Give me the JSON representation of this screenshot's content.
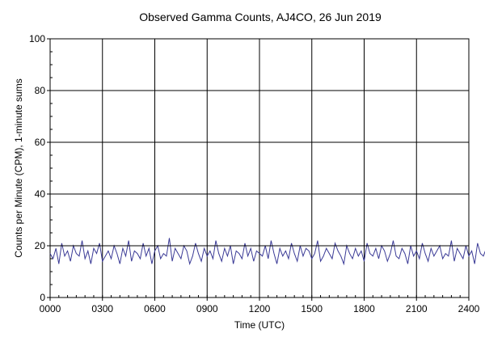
{
  "chart_data": {
    "type": "line",
    "title": "Observed Gamma Counts, AJ4CO, 26 Jun 2019",
    "xlabel": "Time (UTC)",
    "ylabel": "Counts per Minute (CPM), 1-minute sums",
    "xlim": [
      0,
      1440
    ],
    "ylim": [
      0,
      100
    ],
    "x_ticks": [
      {
        "value": 0,
        "label": "0000"
      },
      {
        "value": 180,
        "label": "0300"
      },
      {
        "value": 360,
        "label": "0600"
      },
      {
        "value": 540,
        "label": "0900"
      },
      {
        "value": 720,
        "label": "1200"
      },
      {
        "value": 900,
        "label": "1500"
      },
      {
        "value": 1080,
        "label": "1800"
      },
      {
        "value": 1260,
        "label": "2100"
      },
      {
        "value": 1440,
        "label": "2400"
      }
    ],
    "y_ticks": [
      {
        "value": 0,
        "label": "0"
      },
      {
        "value": 20,
        "label": "20"
      },
      {
        "value": 40,
        "label": "40"
      },
      {
        "value": 60,
        "label": "60"
      },
      {
        "value": 80,
        "label": "80"
      },
      {
        "value": 100,
        "label": "100"
      }
    ],
    "grid": true,
    "reference_line": {
      "y": 20
    },
    "series": [
      {
        "color": "#3a3a96",
        "x_start": 0,
        "x_step": 10,
        "values": [
          17,
          15,
          19,
          13,
          21,
          16,
          18,
          14,
          20,
          17,
          16,
          22,
          15,
          18,
          13,
          19,
          17,
          21,
          14,
          16,
          18,
          15,
          20,
          17,
          13,
          19,
          16,
          22,
          14,
          18,
          17,
          15,
          21,
          16,
          19,
          13,
          18,
          20,
          15,
          17,
          16,
          23,
          14,
          19,
          17,
          15,
          20,
          18,
          13,
          16,
          21,
          17,
          14,
          19,
          16,
          18,
          15,
          22,
          17,
          14,
          19,
          16,
          20,
          13,
          18,
          17,
          15,
          21,
          16,
          19,
          14,
          18,
          17,
          16,
          20,
          15,
          22,
          17,
          13,
          19,
          16,
          18,
          15,
          21,
          17,
          14,
          20,
          16,
          19,
          18,
          15,
          17,
          22,
          14,
          16,
          19,
          17,
          15,
          21,
          18,
          16,
          13,
          20,
          17,
          15,
          19,
          16,
          18,
          14,
          21,
          17,
          16,
          19,
          15,
          20,
          18,
          14,
          17,
          22,
          16,
          15,
          19,
          17,
          13,
          20,
          16,
          18,
          15,
          21,
          17,
          14,
          19,
          16,
          18,
          20,
          15,
          17,
          16,
          22,
          14,
          19,
          17,
          15,
          20,
          16,
          18,
          13,
          21,
          17,
          16,
          19,
          15
        ]
      }
    ]
  }
}
